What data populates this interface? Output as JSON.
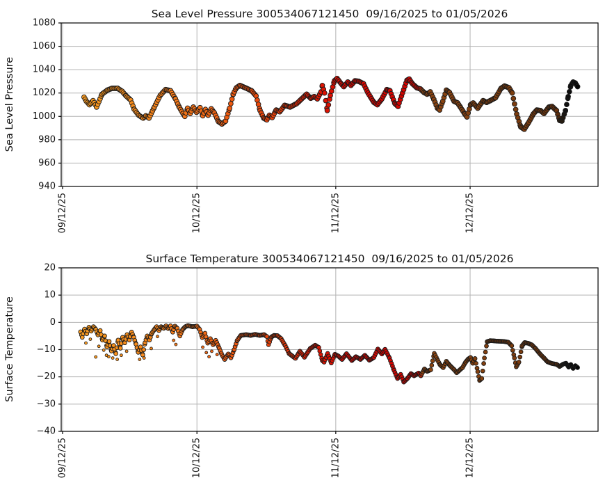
{
  "figure": {
    "background": "#ffffff",
    "x_unit": "days since 09/16/2025",
    "xtick_labels": [
      "09/12/25",
      "10/12/25",
      "11/12/25",
      "12/12/25"
    ],
    "xtick_days": [
      -4,
      26,
      57,
      87
    ]
  },
  "colors": {
    "grid": "#b3b3b3",
    "axis": "#000000",
    "text": "#111111",
    "marker_edge": "#1a1a1a",
    "time_color_stops": [
      [
        0.0,
        "#F89B20"
      ],
      [
        0.12,
        "#F68A1C"
      ],
      [
        0.23,
        "#F26F17"
      ],
      [
        0.33,
        "#EC520E"
      ],
      [
        0.4,
        "#E63D09"
      ],
      [
        0.46,
        "#DE1A04"
      ],
      [
        0.55,
        "#DA0600"
      ],
      [
        0.682,
        "#CE0300"
      ],
      [
        0.688,
        "#8B4513"
      ],
      [
        0.8,
        "#84400F"
      ],
      [
        0.9,
        "#7A3B0E"
      ],
      [
        0.958,
        "#6B330D"
      ],
      [
        0.966,
        "#2E2011"
      ],
      [
        0.976,
        "#121212"
      ],
      [
        1.0,
        "#050505"
      ]
    ]
  },
  "chart_data": [
    {
      "type": "scatter",
      "title": "Sea Level Pressure 300534067121450  09/16/2025 to 01/05/2026",
      "ylabel": "Sea Level Pressure",
      "series_name": "sea_level_pressure_hPa",
      "ylim": [
        940,
        1080
      ],
      "yticks": [
        1080,
        1060,
        1040,
        1020,
        1000,
        980,
        960,
        940
      ],
      "xtick_labels": [
        "09/12/25",
        "10/12/25",
        "11/12/25",
        "12/12/25"
      ],
      "xtick_days": [
        -4,
        26,
        57,
        87
      ],
      "grid": true,
      "legend": false,
      "points": [
        [
          0.8,
          1016.5
        ],
        [
          1.3,
          1013
        ],
        [
          2.0,
          1010
        ],
        [
          2.8,
          1013.5
        ],
        [
          3.6,
          1008
        ],
        [
          4.8,
          1019
        ],
        [
          6.0,
          1022.5
        ],
        [
          7.0,
          1024
        ],
        [
          8.3,
          1024
        ],
        [
          9.3,
          1021.5
        ],
        [
          10.2,
          1017.5
        ],
        [
          11.2,
          1014
        ],
        [
          12.0,
          1006
        ],
        [
          13.0,
          1001
        ],
        [
          14.0,
          998.5
        ],
        [
          14.6,
          1000.5
        ],
        [
          15.3,
          998.5
        ],
        [
          16.5,
          1008
        ],
        [
          17.8,
          1018
        ],
        [
          19.0,
          1023
        ],
        [
          20.1,
          1022
        ],
        [
          21.2,
          1015
        ],
        [
          22.1,
          1007.5
        ],
        [
          22.9,
          1002.5
        ],
        [
          23.3,
          1000
        ],
        [
          23.9,
          1007
        ],
        [
          24.5,
          1002.5
        ],
        [
          25.2,
          1008
        ],
        [
          25.9,
          1003.5
        ],
        [
          26.7,
          1007.5
        ],
        [
          27.3,
          1000.5
        ],
        [
          27.9,
          1006
        ],
        [
          28.5,
          1001
        ],
        [
          29.2,
          1006.5
        ],
        [
          29.9,
          1003
        ],
        [
          30.8,
          995.5
        ],
        [
          31.6,
          993.5
        ],
        [
          32.4,
          996
        ],
        [
          33.3,
          1007
        ],
        [
          34.1,
          1019
        ],
        [
          34.8,
          1024.5
        ],
        [
          35.6,
          1026.5
        ],
        [
          36.8,
          1024.5
        ],
        [
          38.2,
          1022
        ],
        [
          39.2,
          1017.5
        ],
        [
          40.1,
          1005
        ],
        [
          40.9,
          998.5
        ],
        [
          41.6,
          997
        ],
        [
          42.2,
          1001
        ],
        [
          42.8,
          999
        ],
        [
          43.7,
          1005.5
        ],
        [
          44.5,
          1004
        ],
        [
          45.6,
          1009.5
        ],
        [
          46.8,
          1008
        ],
        [
          48.3,
          1011
        ],
        [
          49.8,
          1016.5
        ],
        [
          50.5,
          1019
        ],
        [
          51.4,
          1015.5
        ],
        [
          52.2,
          1017
        ],
        [
          52.9,
          1015
        ],
        [
          53.7,
          1021
        ],
        [
          54.0,
          1026.5
        ],
        [
          54.5,
          1020
        ],
        [
          55.1,
          1005
        ],
        [
          55.8,
          1018
        ],
        [
          56.7,
          1030.5
        ],
        [
          57.3,
          1032.5
        ],
        [
          58.2,
          1028
        ],
        [
          58.8,
          1025.5
        ],
        [
          59.7,
          1029.5
        ],
        [
          60.4,
          1026.5
        ],
        [
          61.3,
          1030.5
        ],
        [
          62.1,
          1030
        ],
        [
          63.2,
          1028
        ],
        [
          64.2,
          1020
        ],
        [
          65.5,
          1012
        ],
        [
          66.3,
          1010
        ],
        [
          67.3,
          1015
        ],
        [
          68.4,
          1023
        ],
        [
          69.1,
          1022
        ],
        [
          70.2,
          1011
        ],
        [
          70.9,
          1008.5
        ],
        [
          71.9,
          1020
        ],
        [
          72.9,
          1031
        ],
        [
          73.4,
          1032
        ],
        [
          74.1,
          1028
        ],
        [
          75.1,
          1024.5
        ],
        [
          75.9,
          1023.5
        ],
        [
          76.7,
          1020.5
        ],
        [
          77.4,
          1019
        ],
        [
          78.1,
          1021
        ],
        [
          78.9,
          1014.5
        ],
        [
          79.7,
          1007
        ],
        [
          80.2,
          1005.5
        ],
        [
          80.9,
          1013
        ],
        [
          81.7,
          1022.5
        ],
        [
          82.4,
          1020.5
        ],
        [
          83.4,
          1013
        ],
        [
          84.2,
          1011.5
        ],
        [
          84.9,
          1007.5
        ],
        [
          85.8,
          1002
        ],
        [
          86.3,
          999.5
        ],
        [
          87.1,
          1010
        ],
        [
          87.7,
          1011.5
        ],
        [
          88.7,
          1007
        ],
        [
          89.9,
          1013.5
        ],
        [
          90.7,
          1012
        ],
        [
          91.5,
          1013.5
        ],
        [
          92.7,
          1016
        ],
        [
          93.9,
          1024
        ],
        [
          94.7,
          1026
        ],
        [
          95.7,
          1024.5
        ],
        [
          96.4,
          1020
        ],
        [
          97.4,
          1002
        ],
        [
          98.3,
          991
        ],
        [
          99.1,
          989
        ],
        [
          100.1,
          995
        ],
        [
          101.1,
          1002
        ],
        [
          101.9,
          1005.5
        ],
        [
          102.7,
          1005
        ],
        [
          103.5,
          1002.5
        ],
        [
          104.6,
          1008
        ],
        [
          105.3,
          1008.5
        ],
        [
          106.3,
          1005
        ],
        [
          107.0,
          996.5
        ],
        [
          107.5,
          996
        ],
        [
          108.3,
          1005
        ],
        [
          108.9,
          1017
        ],
        [
          109.5,
          1026.5
        ],
        [
          110.0,
          1029.5
        ],
        [
          110.5,
          1028.5
        ],
        [
          111,
          1025.5
        ]
      ]
    },
    {
      "type": "scatter",
      "title": "Surface Temperature 300534067121450  09/16/2025 to 01/05/2026",
      "ylabel": "Surface Temperature",
      "series_name": "surface_temperature_degC",
      "ylim": [
        -40,
        20
      ],
      "yticks": [
        20,
        10,
        0,
        -10,
        -20,
        -30,
        -40
      ],
      "xtick_labels": [
        "09/12/25",
        "10/12/25",
        "11/12/25",
        "12/12/25"
      ],
      "xtick_days": [
        -4,
        26,
        57,
        87
      ],
      "grid": true,
      "legend": false,
      "points": [
        [
          0,
          -3.5
        ],
        [
          0.4,
          -5.5
        ],
        [
          0.9,
          -2.5
        ],
        [
          1.4,
          -4.2
        ],
        [
          1.9,
          -1.8
        ],
        [
          2.4,
          -3.2
        ],
        [
          2.9,
          -1.6
        ],
        [
          3.4,
          -2.6
        ],
        [
          3.9,
          -4.6
        ],
        [
          4.4,
          -3
        ],
        [
          4.9,
          -6.5
        ],
        [
          5.4,
          -5
        ],
        [
          5.9,
          -9
        ],
        [
          6.4,
          -7
        ],
        [
          6.9,
          -10.5
        ],
        [
          7.4,
          -8.5
        ],
        [
          7.9,
          -11.5
        ],
        [
          8.4,
          -6.5
        ],
        [
          8.9,
          -9.5
        ],
        [
          9.4,
          -5.5
        ],
        [
          9.9,
          -7.5
        ],
        [
          10.4,
          -4.5
        ],
        [
          10.9,
          -6.5
        ],
        [
          11.4,
          -3.6
        ],
        [
          11.9,
          -5.5
        ],
        [
          12.4,
          -8
        ],
        [
          12.9,
          -11
        ],
        [
          13.4,
          -9
        ],
        [
          13.9,
          -12
        ],
        [
          14.4,
          -7.5
        ],
        [
          14.9,
          -5
        ],
        [
          15.4,
          -6.5
        ],
        [
          15.9,
          -4
        ],
        [
          16.5,
          -2.6
        ],
        [
          17.0,
          -1.6
        ],
        [
          17.5,
          -3
        ],
        [
          18.0,
          -1.6
        ],
        [
          18.6,
          -2.2
        ],
        [
          19.1,
          -1.3
        ],
        [
          19.6,
          -2.3
        ],
        [
          20.1,
          -1.3
        ],
        [
          20.6,
          -3.6
        ],
        [
          21.1,
          -1.4
        ],
        [
          21.6,
          -2.2
        ],
        [
          22.2,
          -5
        ],
        [
          22.8,
          -2.6
        ],
        [
          23.4,
          -1.6
        ],
        [
          24.0,
          -1.2
        ],
        [
          25.0,
          -1.6
        ],
        [
          26.0,
          -1.4
        ],
        [
          26.6,
          -2.6
        ],
        [
          27.2,
          -5.6
        ],
        [
          27.8,
          -4
        ],
        [
          28.4,
          -7.6
        ],
        [
          29.0,
          -6
        ],
        [
          29.6,
          -8.2
        ],
        [
          30.2,
          -6.6
        ],
        [
          31.0,
          -9.6
        ],
        [
          31.6,
          -12
        ],
        [
          32.2,
          -13.6
        ],
        [
          33.0,
          -11.6
        ],
        [
          33.6,
          -13
        ],
        [
          34.3,
          -10
        ],
        [
          35.0,
          -6.6
        ],
        [
          35.8,
          -4.8
        ],
        [
          37.0,
          -4.5
        ],
        [
          38.0,
          -4.8
        ],
        [
          39.0,
          -4.4
        ],
        [
          40.0,
          -4.8
        ],
        [
          41.0,
          -4.5
        ],
        [
          41.6,
          -5.2
        ],
        [
          42.0,
          -8.2
        ],
        [
          42.6,
          -5.4
        ],
        [
          43.2,
          -4.8
        ],
        [
          44.0,
          -4.9
        ],
        [
          44.8,
          -6
        ],
        [
          45.7,
          -8.5
        ],
        [
          46.6,
          -11.5
        ],
        [
          48.0,
          -13.2
        ],
        [
          49.0,
          -10.6
        ],
        [
          50.0,
          -12.8
        ],
        [
          51.3,
          -9.6
        ],
        [
          52.4,
          -8.4
        ],
        [
          53.2,
          -9.2
        ],
        [
          54.0,
          -14
        ],
        [
          54.4,
          -14.6
        ],
        [
          55.2,
          -11.4
        ],
        [
          56.0,
          -14.9
        ],
        [
          56.8,
          -11.7
        ],
        [
          57.6,
          -12.4
        ],
        [
          58.4,
          -13.6
        ],
        [
          59.4,
          -11.5
        ],
        [
          60.6,
          -14
        ],
        [
          61.5,
          -12.6
        ],
        [
          62.5,
          -13.6
        ],
        [
          63.5,
          -12.1
        ],
        [
          64.5,
          -13.9
        ],
        [
          65.5,
          -12.9
        ],
        [
          66.4,
          -9.8
        ],
        [
          67.3,
          -11.6
        ],
        [
          68.0,
          -9.9
        ],
        [
          69.0,
          -13.1
        ],
        [
          70.0,
          -17.6
        ],
        [
          70.8,
          -20.6
        ],
        [
          71.5,
          -19.1
        ],
        [
          72.2,
          -21.9
        ],
        [
          73.0,
          -20.6
        ],
        [
          73.8,
          -18.8
        ],
        [
          74.5,
          -19.6
        ],
        [
          75.5,
          -18.6
        ],
        [
          76.0,
          -19.6
        ],
        [
          76.8,
          -17.1
        ],
        [
          77.4,
          -18
        ],
        [
          78.2,
          -17.4
        ],
        [
          79.0,
          -11.4
        ],
        [
          79.8,
          -14.1
        ],
        [
          80.3,
          -15.6
        ],
        [
          81.0,
          -16.6
        ],
        [
          81.7,
          -14.3
        ],
        [
          82.5,
          -15.9
        ],
        [
          83.4,
          -17.3
        ],
        [
          84.0,
          -18.5
        ],
        [
          84.6,
          -17.6
        ],
        [
          85.3,
          -16.6
        ],
        [
          86.0,
          -14.6
        ],
        [
          86.6,
          -13.4
        ],
        [
          87.1,
          -12.9
        ],
        [
          87.6,
          -15
        ],
        [
          88.1,
          -13.3
        ],
        [
          88.7,
          -18.1
        ],
        [
          89.1,
          -21.3
        ],
        [
          89.6,
          -20.6
        ],
        [
          90.2,
          -13.1
        ],
        [
          90.8,
          -7.1
        ],
        [
          91.5,
          -6.7
        ],
        [
          93.0,
          -6.9
        ],
        [
          94.5,
          -7
        ],
        [
          95.5,
          -7.3
        ],
        [
          96.3,
          -8.6
        ],
        [
          96.9,
          -13.1
        ],
        [
          97.3,
          -16.3
        ],
        [
          97.9,
          -14.6
        ],
        [
          98.6,
          -8.6
        ],
        [
          99.2,
          -7.4
        ],
        [
          100.0,
          -7.7
        ],
        [
          100.8,
          -8.3
        ],
        [
          101.6,
          -9.6
        ],
        [
          102.6,
          -11.6
        ],
        [
          103.5,
          -13.1
        ],
        [
          104.3,
          -14.5
        ],
        [
          105.3,
          -15.1
        ],
        [
          106.3,
          -15.4
        ],
        [
          107.0,
          -16.2
        ],
        [
          107.8,
          -15.3
        ],
        [
          108.4,
          -15
        ],
        [
          109.0,
          -16.4
        ],
        [
          109.5,
          -15.5
        ],
        [
          110.0,
          -16.9
        ],
        [
          110.5,
          -15.9
        ],
        [
          111,
          -16.6
        ]
      ],
      "scatter_extra": [
        [
          1.2,
          -7.6
        ],
        [
          2.2,
          -6.2
        ],
        [
          3.4,
          -12.7
        ],
        [
          4.1,
          -8.8
        ],
        [
          5.2,
          -10.2
        ],
        [
          5.8,
          -12.1
        ],
        [
          6.3,
          -12.6
        ],
        [
          7.2,
          -13.1
        ],
        [
          8.2,
          -13.6
        ],
        [
          9.1,
          -12.1
        ],
        [
          10.3,
          -10.6
        ],
        [
          13.2,
          -13.6
        ],
        [
          14.2,
          -13.1
        ],
        [
          15.8,
          -9.6
        ],
        [
          17.2,
          -5.2
        ],
        [
          20.8,
          -6.6
        ],
        [
          21.3,
          -8.1
        ],
        [
          27.3,
          -9.1
        ],
        [
          28.1,
          -11.1
        ],
        [
          28.7,
          -12.6
        ],
        [
          29.3,
          -10.6
        ],
        [
          30.5,
          -11.8
        ]
      ]
    }
  ]
}
